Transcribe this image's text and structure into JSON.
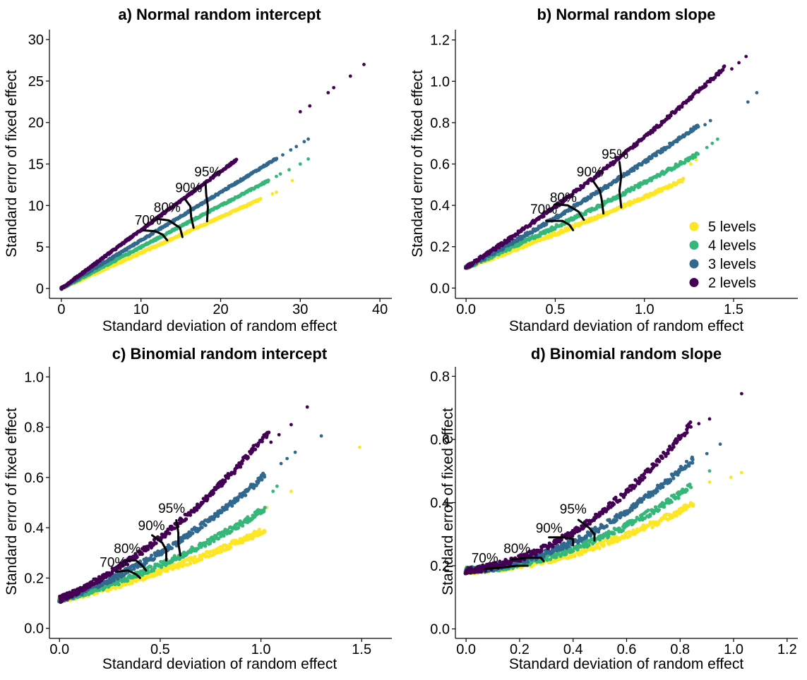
{
  "colors": {
    "2 levels": "#440154",
    "3 levels": "#31688e",
    "4 levels": "#35b779",
    "5 levels": "#fde725",
    "axis": "#000000",
    "contour": "#000000"
  },
  "legend": {
    "placement": "panel-b-bottom-right",
    "items": [
      {
        "label": "5 levels",
        "color": "#fde725"
      },
      {
        "label": "4 levels",
        "color": "#35b779"
      },
      {
        "label": "3 levels",
        "color": "#31688e"
      },
      {
        "label": "2 levels",
        "color": "#440154"
      }
    ]
  },
  "chart_data": [
    {
      "id": "a",
      "type": "scatter",
      "title": "a) Normal random intercept",
      "xlabel": "Standard deviation of random effect",
      "ylabel": "Standard error of fixed effect",
      "xlim": [
        -1.5,
        41.5
      ],
      "ylim": [
        -1.2,
        31.2
      ],
      "xticks": [
        0,
        10,
        20,
        30,
        40
      ],
      "xtick_labels": [
        "0",
        "10",
        "20",
        "30",
        "40"
      ],
      "yticks": [
        0,
        5,
        10,
        15,
        20,
        25,
        30
      ],
      "ytick_labels": [
        "0",
        "5",
        "10",
        "15",
        "20",
        "25",
        "30"
      ],
      "series": [
        {
          "name": "2 levels",
          "x0": 0,
          "y0": 0,
          "slope": 0.705,
          "curv": 0,
          "spread": 0.1,
          "xmax": 22,
          "outliers": [
            [
              38.0,
              27.0
            ],
            [
              36.3,
              25.6
            ],
            [
              34.2,
              24.2
            ],
            [
              33.5,
              23.6
            ],
            [
              31.2,
              22.0
            ],
            [
              30.0,
              21.3
            ]
          ]
        },
        {
          "name": "3 levels",
          "x0": 0,
          "y0": 0,
          "slope": 0.58,
          "curv": 0,
          "spread": 0.1,
          "xmax": 27,
          "outliers": [
            [
              31.0,
              18.0
            ],
            [
              30.5,
              17.7
            ],
            [
              29.5,
              17.1
            ],
            [
              28.8,
              16.7
            ],
            [
              27.8,
              16.1
            ]
          ]
        },
        {
          "name": "4 levels",
          "x0": 0,
          "y0": 0,
          "slope": 0.5,
          "curv": 0,
          "spread": 0.1,
          "xmax": 26,
          "outliers": [
            [
              31.0,
              15.6
            ],
            [
              30.0,
              15.0
            ],
            [
              28.6,
              14.3
            ],
            [
              27.5,
              13.8
            ],
            [
              27.0,
              13.5
            ]
          ]
        },
        {
          "name": "5 levels",
          "x0": 0,
          "y0": 0,
          "slope": 0.43,
          "curv": 0,
          "spread": 0.1,
          "xmax": 25,
          "outliers": [
            [
              29.0,
              13.0
            ],
            [
              27.0,
              11.6
            ],
            [
              26.5,
              11.4
            ]
          ]
        }
      ],
      "contours": [
        {
          "label": "70%",
          "label_at": [
            9.2,
            7.7
          ],
          "points": [
            [
              10.3,
              7.0
            ],
            [
              11.8,
              6.9
            ],
            [
              12.7,
              6.5
            ],
            [
              13.3,
              5.8
            ]
          ]
        },
        {
          "label": "80%",
          "label_at": [
            11.6,
            9.2
          ],
          "points": [
            [
              12.0,
              8.4
            ],
            [
              13.5,
              8.2
            ],
            [
              14.9,
              7.3
            ],
            [
              15.2,
              6.2
            ]
          ]
        },
        {
          "label": "90%",
          "label_at": [
            14.3,
            11.6
          ],
          "points": [
            [
              15.5,
              10.8
            ],
            [
              16.2,
              9.9
            ],
            [
              16.3,
              8.6
            ],
            [
              16.6,
              7.3
            ]
          ]
        },
        {
          "label": "95%",
          "label_at": [
            16.7,
            13.5
          ],
          "points": [
            [
              18.1,
              12.7
            ],
            [
              18.2,
              11.2
            ],
            [
              18.4,
              9.8
            ],
            [
              18.3,
              8.1
            ]
          ]
        }
      ]
    },
    {
      "id": "b",
      "type": "scatter",
      "title": "b) Normal random slope",
      "xlabel": "Standard deviation of random effect",
      "ylabel": "Standard error of fixed effect",
      "xlim": [
        -0.06,
        1.86
      ],
      "ylim": [
        -0.05,
        1.25
      ],
      "xticks": [
        0,
        0.5,
        1.0,
        1.5
      ],
      "xtick_labels": [
        "0.0",
        "0.5",
        "1.0",
        "1.5"
      ],
      "yticks": [
        0,
        0.2,
        0.4,
        0.6,
        0.8,
        1.0,
        1.2
      ],
      "ytick_labels": [
        "0.0",
        "0.2",
        "0.4",
        "0.6",
        "0.8",
        "1.0",
        "1.2"
      ],
      "series": [
        {
          "name": "2 levels",
          "x0": 0,
          "y0": 0.1,
          "slope": 0.55,
          "curv": 0.08,
          "spread": 0.008,
          "xmax": 1.45,
          "outliers": [
            [
              1.57,
              1.12
            ],
            [
              1.53,
              1.09
            ],
            [
              1.49,
              1.06
            ]
          ]
        },
        {
          "name": "3 levels",
          "x0": 0,
          "y0": 0.1,
          "slope": 0.45,
          "curv": 0.06,
          "spread": 0.008,
          "xmax": 1.3,
          "outliers": [
            [
              1.63,
              0.945
            ],
            [
              1.58,
              0.9
            ],
            [
              1.37,
              0.81
            ],
            [
              1.34,
              0.79
            ]
          ]
        },
        {
          "name": "4 levels",
          "x0": 0,
          "y0": 0.1,
          "slope": 0.37,
          "curv": 0.04,
          "spread": 0.008,
          "xmax": 1.3,
          "outliers": [
            [
              1.41,
              0.72
            ],
            [
              1.38,
              0.7
            ],
            [
              1.35,
              0.68
            ]
          ]
        },
        {
          "name": "5 levels",
          "x0": 0,
          "y0": 0.1,
          "slope": 0.31,
          "curv": 0.03,
          "spread": 0.008,
          "xmax": 1.22,
          "outliers": [
            [
              1.29,
              0.62
            ],
            [
              1.26,
              0.6
            ]
          ]
        }
      ],
      "contours": [
        {
          "label": "70%",
          "label_at": [
            0.36,
            0.36
          ],
          "points": [
            [
              0.45,
              0.325
            ],
            [
              0.54,
              0.325
            ],
            [
              0.58,
              0.305
            ],
            [
              0.6,
              0.28
            ]
          ]
        },
        {
          "label": "80%",
          "label_at": [
            0.47,
            0.415
          ],
          "points": [
            [
              0.5,
              0.405
            ],
            [
              0.57,
              0.4
            ],
            [
              0.63,
              0.37
            ],
            [
              0.66,
              0.33
            ]
          ]
        },
        {
          "label": "90%",
          "label_at": [
            0.62,
            0.54
          ],
          "points": [
            [
              0.71,
              0.52
            ],
            [
              0.75,
              0.47
            ],
            [
              0.76,
              0.43
            ],
            [
              0.77,
              0.36
            ]
          ]
        },
        {
          "label": "95%",
          "label_at": [
            0.76,
            0.625
          ],
          "points": [
            [
              0.86,
              0.61
            ],
            [
              0.87,
              0.54
            ],
            [
              0.86,
              0.47
            ],
            [
              0.87,
              0.39
            ]
          ]
        }
      ]
    },
    {
      "id": "c",
      "type": "scatter",
      "title": "c) Binomial random intercept",
      "xlabel": "Standard deviation of random effect",
      "ylabel": "Standard error of fixed effect",
      "xlim": [
        -0.05,
        1.65
      ],
      "ylim": [
        -0.04,
        1.04
      ],
      "xticks": [
        0,
        0.5,
        1.0,
        1.5
      ],
      "xtick_labels": [
        "0.0",
        "0.5",
        "1.0",
        "1.5"
      ],
      "yticks": [
        0,
        0.2,
        0.4,
        0.6,
        0.8,
        1.0
      ],
      "ytick_labels": [
        "0.0",
        "0.2",
        "0.4",
        "0.6",
        "0.8",
        "1.0"
      ],
      "series": [
        {
          "name": "2 levels",
          "x0": 0,
          "y0": 0.115,
          "slope": 0.35,
          "curv": 0.28,
          "spread": 0.012,
          "xmax": 1.04,
          "outliers": [
            [
              1.23,
              0.88
            ],
            [
              1.15,
              0.81
            ],
            [
              1.09,
              0.77
            ],
            [
              1.05,
              0.74
            ]
          ]
        },
        {
          "name": "3 levels",
          "x0": 0,
          "y0": 0.115,
          "slope": 0.26,
          "curv": 0.22,
          "spread": 0.012,
          "xmax": 1.02,
          "outliers": [
            [
              1.3,
              0.765
            ],
            [
              1.17,
              0.7
            ],
            [
              1.13,
              0.675
            ],
            [
              1.1,
              0.655
            ]
          ]
        },
        {
          "name": "4 levels",
          "x0": 0,
          "y0": 0.115,
          "slope": 0.2,
          "curv": 0.15,
          "spread": 0.012,
          "xmax": 1.02,
          "outliers": [
            [
              1.08,
              0.565
            ],
            [
              1.06,
              0.545
            ]
          ]
        },
        {
          "name": "5 levels",
          "x0": 0,
          "y0": 0.115,
          "slope": 0.17,
          "curv": 0.1,
          "spread": 0.012,
          "xmax": 1.02,
          "outliers": [
            [
              1.49,
              0.72
            ],
            [
              1.15,
              0.545
            ],
            [
              1.03,
              0.48
            ]
          ]
        }
      ],
      "contours": [
        {
          "label": "70%",
          "label_at": [
            0.2,
            0.245
          ],
          "points": [
            [
              0.28,
              0.225
            ],
            [
              0.34,
              0.23
            ],
            [
              0.38,
              0.215
            ],
            [
              0.4,
              0.2
            ]
          ]
        },
        {
          "label": "80%",
          "label_at": [
            0.27,
            0.3
          ],
          "points": [
            [
              0.33,
              0.27
            ],
            [
              0.38,
              0.27
            ],
            [
              0.41,
              0.25
            ],
            [
              0.43,
              0.23
            ]
          ]
        },
        {
          "label": "90%",
          "label_at": [
            0.39,
            0.39
          ],
          "points": [
            [
              0.46,
              0.37
            ],
            [
              0.51,
              0.34
            ],
            [
              0.53,
              0.31
            ],
            [
              0.53,
              0.27
            ]
          ]
        },
        {
          "label": "95%",
          "label_at": [
            0.49,
            0.46
          ],
          "points": [
            [
              0.58,
              0.43
            ],
            [
              0.59,
              0.38
            ],
            [
              0.59,
              0.34
            ],
            [
              0.6,
              0.29
            ]
          ]
        }
      ]
    },
    {
      "id": "d",
      "type": "scatter",
      "title": "d) Binomial random slope",
      "xlabel": "Standard deviation of random effect",
      "ylabel": "Standard error of fixed effect",
      "xlim": [
        -0.04,
        1.24
      ],
      "ylim": [
        -0.03,
        0.83
      ],
      "xticks": [
        0,
        0.2,
        0.4,
        0.6,
        0.8,
        1.0,
        1.2
      ],
      "xtick_labels": [
        "0.0",
        "0.2",
        "0.4",
        "0.6",
        "0.8",
        "1.0",
        "1.2"
      ],
      "yticks": [
        0,
        0.2,
        0.4,
        0.6,
        0.8
      ],
      "ytick_labels": [
        "0.0",
        "0.2",
        "0.4",
        "0.6",
        "0.8"
      ],
      "series": [
        {
          "name": "2 levels",
          "x0": 0,
          "y0": 0.185,
          "slope": 0.08,
          "curv": 0.56,
          "spread": 0.01,
          "xmax": 0.84,
          "outliers": [
            [
              1.03,
              0.745
            ],
            [
              0.91,
              0.665
            ],
            [
              0.87,
              0.65
            ]
          ]
        },
        {
          "name": "3 levels",
          "x0": 0,
          "y0": 0.185,
          "slope": 0.06,
          "curv": 0.42,
          "spread": 0.01,
          "xmax": 0.85,
          "outliers": [
            [
              0.95,
              0.585
            ],
            [
              0.9,
              0.555
            ]
          ]
        },
        {
          "name": "4 levels",
          "x0": 0,
          "y0": 0.185,
          "slope": 0.04,
          "curv": 0.33,
          "spread": 0.01,
          "xmax": 0.84,
          "outliers": [
            [
              0.91,
              0.5
            ]
          ]
        },
        {
          "name": "5 levels",
          "x0": 0,
          "y0": 0.185,
          "slope": 0.03,
          "curv": 0.26,
          "spread": 0.01,
          "xmax": 0.85,
          "outliers": [
            [
              1.03,
              0.495
            ],
            [
              0.99,
              0.48
            ],
            [
              0.91,
              0.465
            ]
          ]
        }
      ],
      "contours": [
        {
          "label": "70%",
          "label_at": [
            0.02,
            0.21
          ],
          "points": [
            [
              0.07,
              0.19
            ],
            [
              0.14,
              0.195
            ],
            [
              0.19,
              0.2
            ],
            [
              0.23,
              0.2
            ]
          ]
        },
        {
          "label": "80%",
          "label_at": [
            0.14,
            0.24
          ],
          "points": [
            [
              0.17,
              0.22
            ],
            [
              0.23,
              0.225
            ],
            [
              0.28,
              0.225
            ],
            [
              0.29,
              0.215
            ]
          ]
        },
        {
          "label": "90%",
          "label_at": [
            0.26,
            0.305
          ],
          "points": [
            [
              0.31,
              0.29
            ],
            [
              0.36,
              0.29
            ],
            [
              0.4,
              0.285
            ],
            [
              0.4,
              0.265
            ]
          ]
        },
        {
          "label": "95%",
          "label_at": [
            0.35,
            0.365
          ],
          "points": [
            [
              0.42,
              0.345
            ],
            [
              0.46,
              0.32
            ],
            [
              0.48,
              0.3
            ],
            [
              0.48,
              0.28
            ]
          ]
        }
      ]
    }
  ]
}
